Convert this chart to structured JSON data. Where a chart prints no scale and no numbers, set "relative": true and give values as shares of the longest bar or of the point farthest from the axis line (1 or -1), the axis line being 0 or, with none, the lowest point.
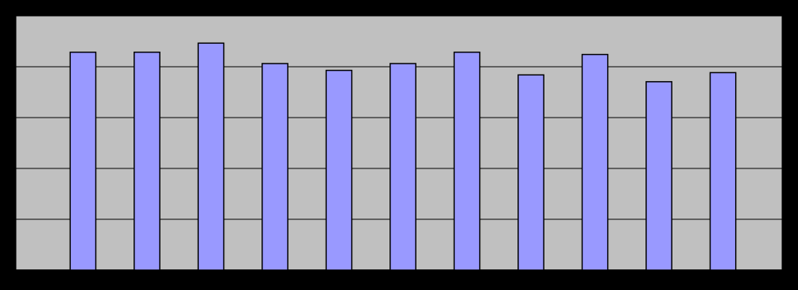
{
  "chart_data": {
    "type": "bar",
    "relative": true,
    "grid": true,
    "categories": [
      null,
      null,
      null,
      null,
      null,
      null,
      null,
      null,
      null,
      null,
      null
    ],
    "series": [
      {
        "color": "#9999ff",
        "values": [
          0.96,
          0.96,
          1,
          0.91,
          0.88,
          0.91,
          0.96,
          0.86,
          0.95,
          0.83,
          0.87
        ]
      }
    ]
  }
}
